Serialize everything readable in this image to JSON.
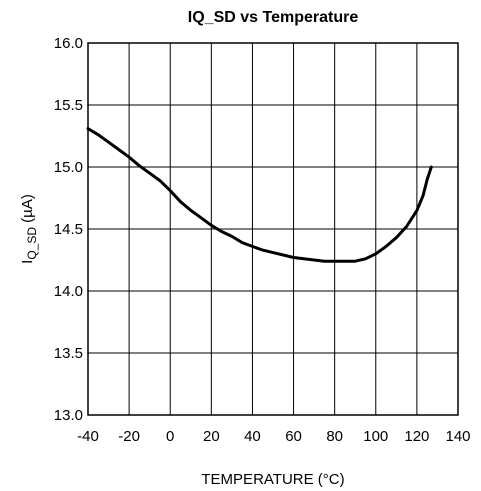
{
  "chart_data": {
    "type": "line",
    "title": "IQ_SD vs Temperature",
    "xlabel": "TEMPERATURE (°C)",
    "ylabel": {
      "main": "I",
      "sub": "Q_SD",
      "unit": " (µA)"
    },
    "xlim": [
      -40,
      140
    ],
    "ylim": [
      13.0,
      16.0
    ],
    "xticks": [
      "-40",
      "-20",
      "0",
      "20",
      "40",
      "60",
      "80",
      "100",
      "120",
      "140"
    ],
    "yticks": [
      "13.0",
      "13.5",
      "14.0",
      "14.5",
      "15.0",
      "15.5",
      "16.0"
    ],
    "grid": true,
    "series": [
      {
        "color": "#000000",
        "x": [
          -40,
          -35,
          -30,
          -25,
          -20,
          -15,
          -10,
          -5,
          0,
          5,
          10,
          15,
          20,
          25,
          30,
          35,
          40,
          45,
          50,
          55,
          60,
          65,
          70,
          75,
          80,
          85,
          90,
          95,
          100,
          105,
          110,
          115,
          120,
          123,
          125,
          127
        ],
        "y": [
          15.31,
          15.26,
          15.2,
          15.14,
          15.08,
          15.01,
          14.95,
          14.89,
          14.81,
          14.72,
          14.65,
          14.59,
          14.53,
          14.48,
          14.44,
          14.39,
          14.36,
          14.33,
          14.31,
          14.29,
          14.27,
          14.26,
          14.25,
          14.24,
          14.24,
          14.24,
          14.24,
          14.26,
          14.3,
          14.36,
          14.43,
          14.52,
          14.65,
          14.77,
          14.9,
          15.0
        ]
      }
    ]
  }
}
